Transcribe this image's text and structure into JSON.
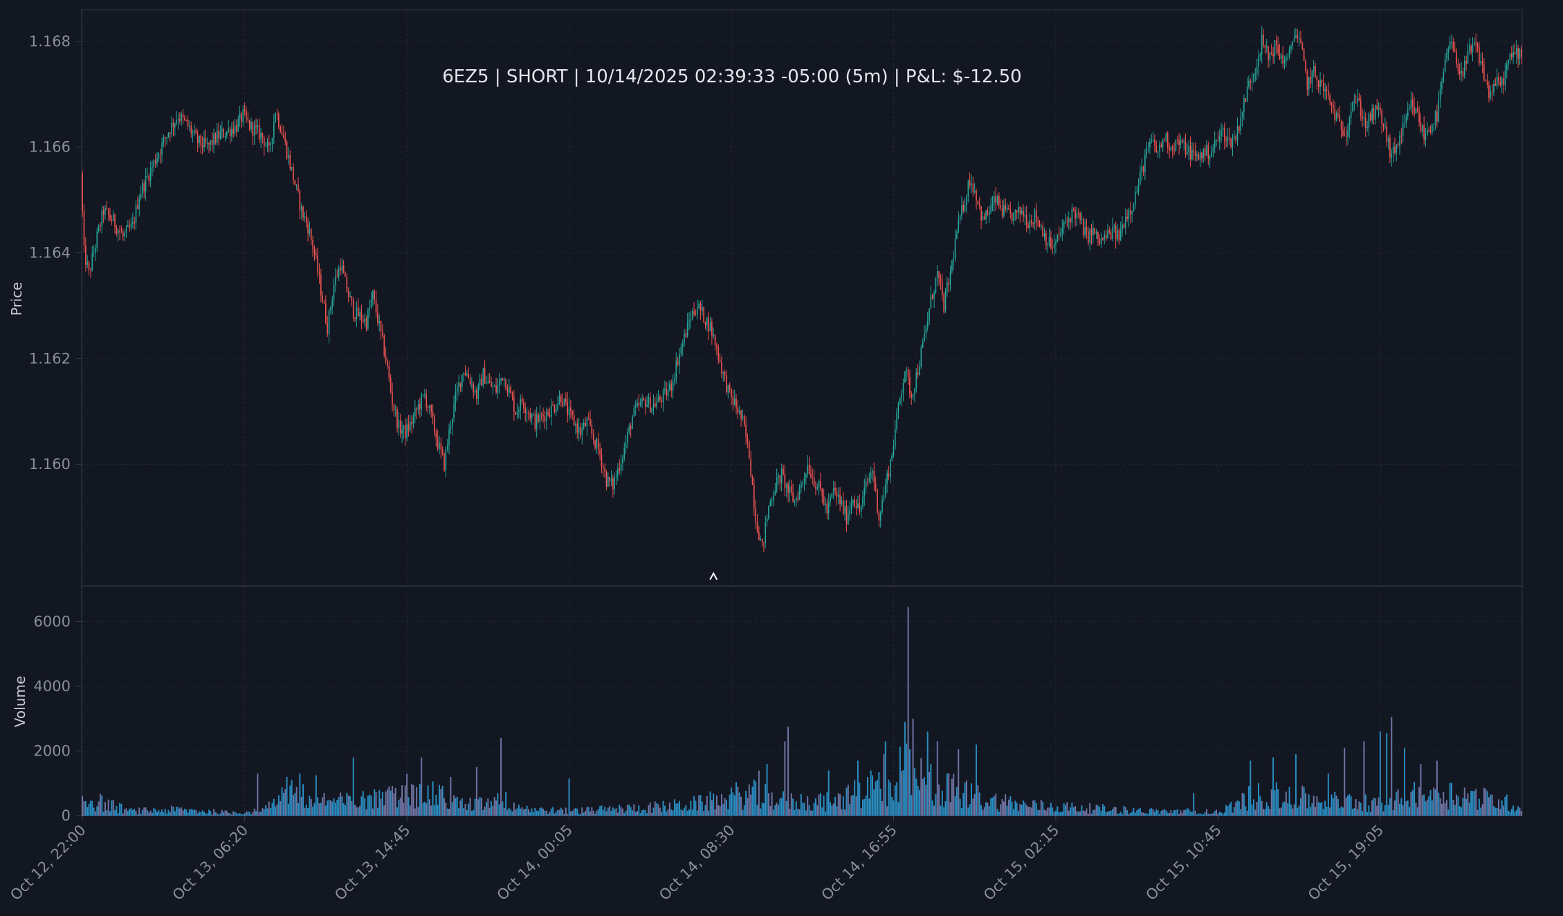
{
  "chart_data": {
    "type": "candlestick",
    "title": "6EZ5 | SHORT | 10/14/2025 02:39:33 -05:00 (5m) | P&L: $-12.50",
    "price_panel": {
      "ylabel": "Price",
      "ylim": [
        1.1577,
        1.1686
      ],
      "yticks": [
        "1.160",
        "1.162",
        "1.164",
        "1.166",
        "1.168"
      ],
      "ytick_values": [
        1.16,
        1.162,
        1.164,
        1.166,
        1.168
      ],
      "anchors": [
        [
          0,
          1.1655
        ],
        [
          2,
          1.164
        ],
        [
          5,
          1.1636
        ],
        [
          10,
          1.1643
        ],
        [
          14,
          1.1648
        ],
        [
          20,
          1.1646
        ],
        [
          26,
          1.1643
        ],
        [
          32,
          1.1645
        ],
        [
          36,
          1.1651
        ],
        [
          42,
          1.1655
        ],
        [
          48,
          1.1659
        ],
        [
          54,
          1.1663
        ],
        [
          60,
          1.1666
        ],
        [
          66,
          1.1664
        ],
        [
          72,
          1.1661
        ],
        [
          78,
          1.166
        ],
        [
          84,
          1.1662
        ],
        [
          90,
          1.1663
        ],
        [
          96,
          1.1664
        ],
        [
          100,
          1.1666
        ],
        [
          104,
          1.1664
        ],
        [
          108,
          1.1663
        ],
        [
          112,
          1.1662
        ],
        [
          116,
          1.1659
        ],
        [
          120,
          1.1667
        ],
        [
          124,
          1.1663
        ],
        [
          128,
          1.1658
        ],
        [
          132,
          1.1653
        ],
        [
          136,
          1.1648
        ],
        [
          140,
          1.1645
        ],
        [
          144,
          1.164
        ],
        [
          148,
          1.1633
        ],
        [
          152,
          1.1626
        ],
        [
          156,
          1.1634
        ],
        [
          160,
          1.1638
        ],
        [
          164,
          1.1633
        ],
        [
          168,
          1.1629
        ],
        [
          172,
          1.1628
        ],
        [
          176,
          1.1627
        ],
        [
          180,
          1.1632
        ],
        [
          184,
          1.1626
        ],
        [
          188,
          1.162
        ],
        [
          192,
          1.1612
        ],
        [
          196,
          1.1607
        ],
        [
          200,
          1.1606
        ],
        [
          204,
          1.1608
        ],
        [
          208,
          1.1611
        ],
        [
          212,
          1.1613
        ],
        [
          216,
          1.1609
        ],
        [
          220,
          1.1604
        ],
        [
          224,
          1.16
        ],
        [
          228,
          1.1608
        ],
        [
          232,
          1.1614
        ],
        [
          236,
          1.1618
        ],
        [
          240,
          1.1616
        ],
        [
          244,
          1.1613
        ],
        [
          248,
          1.1617
        ],
        [
          252,
          1.1615
        ],
        [
          256,
          1.1614
        ],
        [
          260,
          1.1617
        ],
        [
          264,
          1.1614
        ],
        [
          268,
          1.161
        ],
        [
          272,
          1.1612
        ],
        [
          276,
          1.161
        ],
        [
          280,
          1.1608
        ],
        [
          284,
          1.1609
        ],
        [
          288,
          1.161
        ],
        [
          292,
          1.1611
        ],
        [
          296,
          1.1613
        ],
        [
          300,
          1.161
        ],
        [
          304,
          1.1608
        ],
        [
          308,
          1.1606
        ],
        [
          312,
          1.1608
        ],
        [
          316,
          1.1605
        ],
        [
          320,
          1.1602
        ],
        [
          324,
          1.1597
        ],
        [
          328,
          1.1596
        ],
        [
          332,
          1.16
        ],
        [
          336,
          1.1604
        ],
        [
          340,
          1.1609
        ],
        [
          344,
          1.1611
        ],
        [
          348,
          1.1612
        ],
        [
          352,
          1.1611
        ],
        [
          356,
          1.1612
        ],
        [
          360,
          1.1613
        ],
        [
          364,
          1.1615
        ],
        [
          368,
          1.162
        ],
        [
          372,
          1.1624
        ],
        [
          376,
          1.1628
        ],
        [
          380,
          1.163
        ],
        [
          384,
          1.1628
        ],
        [
          388,
          1.1626
        ],
        [
          392,
          1.1622
        ],
        [
          396,
          1.1617
        ],
        [
          400,
          1.1613
        ],
        [
          404,
          1.1611
        ],
        [
          408,
          1.1608
        ],
        [
          412,
          1.1602
        ],
        [
          416,
          1.159
        ],
        [
          420,
          1.1584
        ],
        [
          424,
          1.1592
        ],
        [
          428,
          1.1596
        ],
        [
          432,
          1.1598
        ],
        [
          436,
          1.1595
        ],
        [
          440,
          1.1593
        ],
        [
          444,
          1.1596
        ],
        [
          448,
          1.16
        ],
        [
          452,
          1.1597
        ],
        [
          456,
          1.1595
        ],
        [
          460,
          1.1591
        ],
        [
          464,
          1.1595
        ],
        [
          468,
          1.1593
        ],
        [
          472,
          1.159
        ],
        [
          476,
          1.1594
        ],
        [
          480,
          1.1591
        ],
        [
          484,
          1.1596
        ],
        [
          488,
          1.1599
        ],
        [
          492,
          1.159
        ],
        [
          496,
          1.1596
        ],
        [
          500,
          1.1602
        ],
        [
          504,
          1.1611
        ],
        [
          508,
          1.1618
        ],
        [
          512,
          1.1613
        ],
        [
          516,
          1.1618
        ],
        [
          520,
          1.1624
        ],
        [
          524,
          1.1631
        ],
        [
          528,
          1.1636
        ],
        [
          532,
          1.163
        ],
        [
          536,
          1.1636
        ],
        [
          540,
          1.1644
        ],
        [
          544,
          1.1649
        ],
        [
          548,
          1.1654
        ],
        [
          552,
          1.1651
        ],
        [
          556,
          1.1646
        ],
        [
          560,
          1.1648
        ],
        [
          564,
          1.165
        ],
        [
          568,
          1.1648
        ],
        [
          572,
          1.1647
        ],
        [
          576,
          1.1647
        ],
        [
          580,
          1.1648
        ],
        [
          584,
          1.1646
        ],
        [
          588,
          1.1647
        ],
        [
          592,
          1.1645
        ],
        [
          596,
          1.1642
        ],
        [
          600,
          1.1641
        ],
        [
          604,
          1.1644
        ],
        [
          608,
          1.1646
        ],
        [
          612,
          1.1648
        ],
        [
          616,
          1.1646
        ],
        [
          620,
          1.1643
        ],
        [
          624,
          1.1644
        ],
        [
          628,
          1.1642
        ],
        [
          632,
          1.1643
        ],
        [
          636,
          1.1644
        ],
        [
          640,
          1.1643
        ],
        [
          644,
          1.1647
        ],
        [
          648,
          1.1649
        ],
        [
          652,
          1.1653
        ],
        [
          656,
          1.1658
        ],
        [
          660,
          1.1661
        ],
        [
          664,
          1.1659
        ],
        [
          668,
          1.1662
        ],
        [
          672,
          1.166
        ],
        [
          676,
          1.1661
        ],
        [
          680,
          1.166
        ],
        [
          684,
          1.1659
        ],
        [
          688,
          1.1658
        ],
        [
          692,
          1.1659
        ],
        [
          696,
          1.1659
        ],
        [
          700,
          1.1661
        ],
        [
          704,
          1.1663
        ],
        [
          708,
          1.1661
        ],
        [
          712,
          1.1662
        ],
        [
          716,
          1.1667
        ],
        [
          720,
          1.1672
        ],
        [
          724,
          1.1675
        ],
        [
          728,
          1.168
        ],
        [
          732,
          1.1677
        ],
        [
          736,
          1.1679
        ],
        [
          740,
          1.1677
        ],
        [
          744,
          1.1676
        ],
        [
          748,
          1.1682
        ],
        [
          752,
          1.1679
        ],
        [
          756,
          1.1672
        ],
        [
          760,
          1.1674
        ],
        [
          764,
          1.1672
        ],
        [
          768,
          1.167
        ],
        [
          772,
          1.1667
        ],
        [
          776,
          1.1664
        ],
        [
          780,
          1.1663
        ],
        [
          784,
          1.1669
        ],
        [
          788,
          1.1668
        ],
        [
          792,
          1.1664
        ],
        [
          796,
          1.1666
        ],
        [
          800,
          1.1667
        ],
        [
          804,
          1.1663
        ],
        [
          808,
          1.1658
        ],
        [
          812,
          1.1661
        ],
        [
          816,
          1.1664
        ],
        [
          820,
          1.1668
        ],
        [
          824,
          1.1666
        ],
        [
          828,
          1.1662
        ],
        [
          832,
          1.1664
        ],
        [
          836,
          1.1666
        ],
        [
          840,
          1.1674
        ],
        [
          844,
          1.168
        ],
        [
          848,
          1.1676
        ],
        [
          852,
          1.1674
        ],
        [
          856,
          1.1678
        ],
        [
          860,
          1.1679
        ],
        [
          864,
          1.1675
        ],
        [
          868,
          1.167
        ],
        [
          872,
          1.1672
        ],
        [
          876,
          1.1672
        ],
        [
          880,
          1.1676
        ],
        [
          884,
          1.1678
        ],
        [
          887,
          1.1678
        ]
      ]
    },
    "volume_panel": {
      "ylabel": "Volume",
      "ylim": [
        0,
        7100
      ],
      "yticks": [
        "0",
        "2000",
        "4000",
        "6000"
      ],
      "ytick_values": [
        0,
        2000,
        4000,
        6000
      ],
      "anchors": [
        [
          0,
          600
        ],
        [
          30,
          150
        ],
        [
          60,
          200
        ],
        [
          90,
          100
        ],
        [
          110,
          150
        ],
        [
          120,
          400
        ],
        [
          130,
          900
        ],
        [
          140,
          700
        ],
        [
          150,
          500
        ],
        [
          160,
          450
        ],
        [
          170,
          500
        ],
        [
          180,
          550
        ],
        [
          190,
          600
        ],
        [
          200,
          650
        ],
        [
          210,
          700
        ],
        [
          220,
          650
        ],
        [
          230,
          400
        ],
        [
          240,
          350
        ],
        [
          250,
          400
        ],
        [
          260,
          500
        ],
        [
          270,
          300
        ],
        [
          280,
          200
        ],
        [
          300,
          150
        ],
        [
          320,
          200
        ],
        [
          340,
          250
        ],
        [
          360,
          300
        ],
        [
          380,
          400
        ],
        [
          395,
          550
        ],
        [
          400,
          650
        ],
        [
          410,
          700
        ],
        [
          420,
          700
        ],
        [
          430,
          500
        ],
        [
          440,
          450
        ],
        [
          450,
          500
        ],
        [
          460,
          450
        ],
        [
          470,
          550
        ],
        [
          480,
          800
        ],
        [
          490,
          900
        ],
        [
          500,
          1100
        ],
        [
          505,
          1500
        ],
        [
          510,
          1400
        ],
        [
          515,
          1200
        ],
        [
          520,
          1100
        ],
        [
          530,
          900
        ],
        [
          540,
          800
        ],
        [
          550,
          650
        ],
        [
          560,
          500
        ],
        [
          570,
          450
        ],
        [
          580,
          350
        ],
        [
          600,
          300
        ],
        [
          620,
          250
        ],
        [
          640,
          200
        ],
        [
          660,
          150
        ],
        [
          680,
          150
        ],
        [
          700,
          120
        ],
        [
          710,
          350
        ],
        [
          720,
          600
        ],
        [
          730,
          700
        ],
        [
          740,
          650
        ],
        [
          750,
          600
        ],
        [
          760,
          500
        ],
        [
          770,
          450
        ],
        [
          780,
          500
        ],
        [
          790,
          450
        ],
        [
          800,
          350
        ],
        [
          810,
          500
        ],
        [
          820,
          650
        ],
        [
          830,
          700
        ],
        [
          840,
          750
        ],
        [
          850,
          700
        ],
        [
          860,
          600
        ],
        [
          870,
          500
        ],
        [
          880,
          400
        ],
        [
          887,
          300
        ]
      ],
      "spikes": [
        [
          509,
          6450
        ],
        [
          512,
          3000
        ],
        [
          507,
          2900
        ],
        [
          521,
          2600
        ],
        [
          435,
          2750
        ],
        [
          433,
          2300
        ],
        [
          495,
          2300
        ],
        [
          494,
          1900
        ],
        [
          527,
          2300
        ],
        [
          540,
          2050
        ],
        [
          551,
          2200
        ],
        [
          417,
          1400
        ],
        [
          422,
          1600
        ],
        [
          460,
          1400
        ],
        [
          478,
          1700
        ],
        [
          486,
          1400
        ],
        [
          258,
          2400
        ],
        [
          167,
          1800
        ],
        [
          144,
          1250
        ],
        [
          200,
          1300
        ],
        [
          209,
          1800
        ],
        [
          227,
          1200
        ],
        [
          243,
          1500
        ],
        [
          108,
          1300
        ],
        [
          134,
          1300
        ],
        [
          126,
          1200
        ],
        [
          790,
          2300
        ],
        [
          800,
          2600
        ],
        [
          804,
          2550
        ],
        [
          807,
          3050
        ],
        [
          778,
          2100
        ],
        [
          768,
          1300
        ],
        [
          720,
          1700
        ],
        [
          734,
          1800
        ],
        [
          748,
          1900
        ],
        [
          815,
          2100
        ],
        [
          825,
          1600
        ],
        [
          835,
          1700
        ],
        [
          300,
          1150
        ],
        [
          685,
          700
        ]
      ]
    },
    "x_axis": {
      "ticks": [
        "Oct 12, 22:00",
        "Oct 13, 06:20",
        "Oct 13, 14:45",
        "Oct 14, 00:05",
        "Oct 14, 08:30",
        "Oct 14, 16:55",
        "Oct 15, 02:15",
        "Oct 15, 10:45",
        "Oct 15, 19:05"
      ],
      "tick_bar_index": [
        0,
        100,
        200,
        300,
        400,
        500,
        600,
        700,
        800
      ],
      "bar_count": 888
    },
    "entry_marker": {
      "label": "^",
      "bar_index": 389,
      "price": 1.1579
    },
    "colors": {
      "background": "#131722",
      "grid": "#262b36",
      "up": "#26a69a",
      "down": "#ef5350",
      "volume": "#2d9ad4",
      "marker": "#ffffff"
    }
  }
}
